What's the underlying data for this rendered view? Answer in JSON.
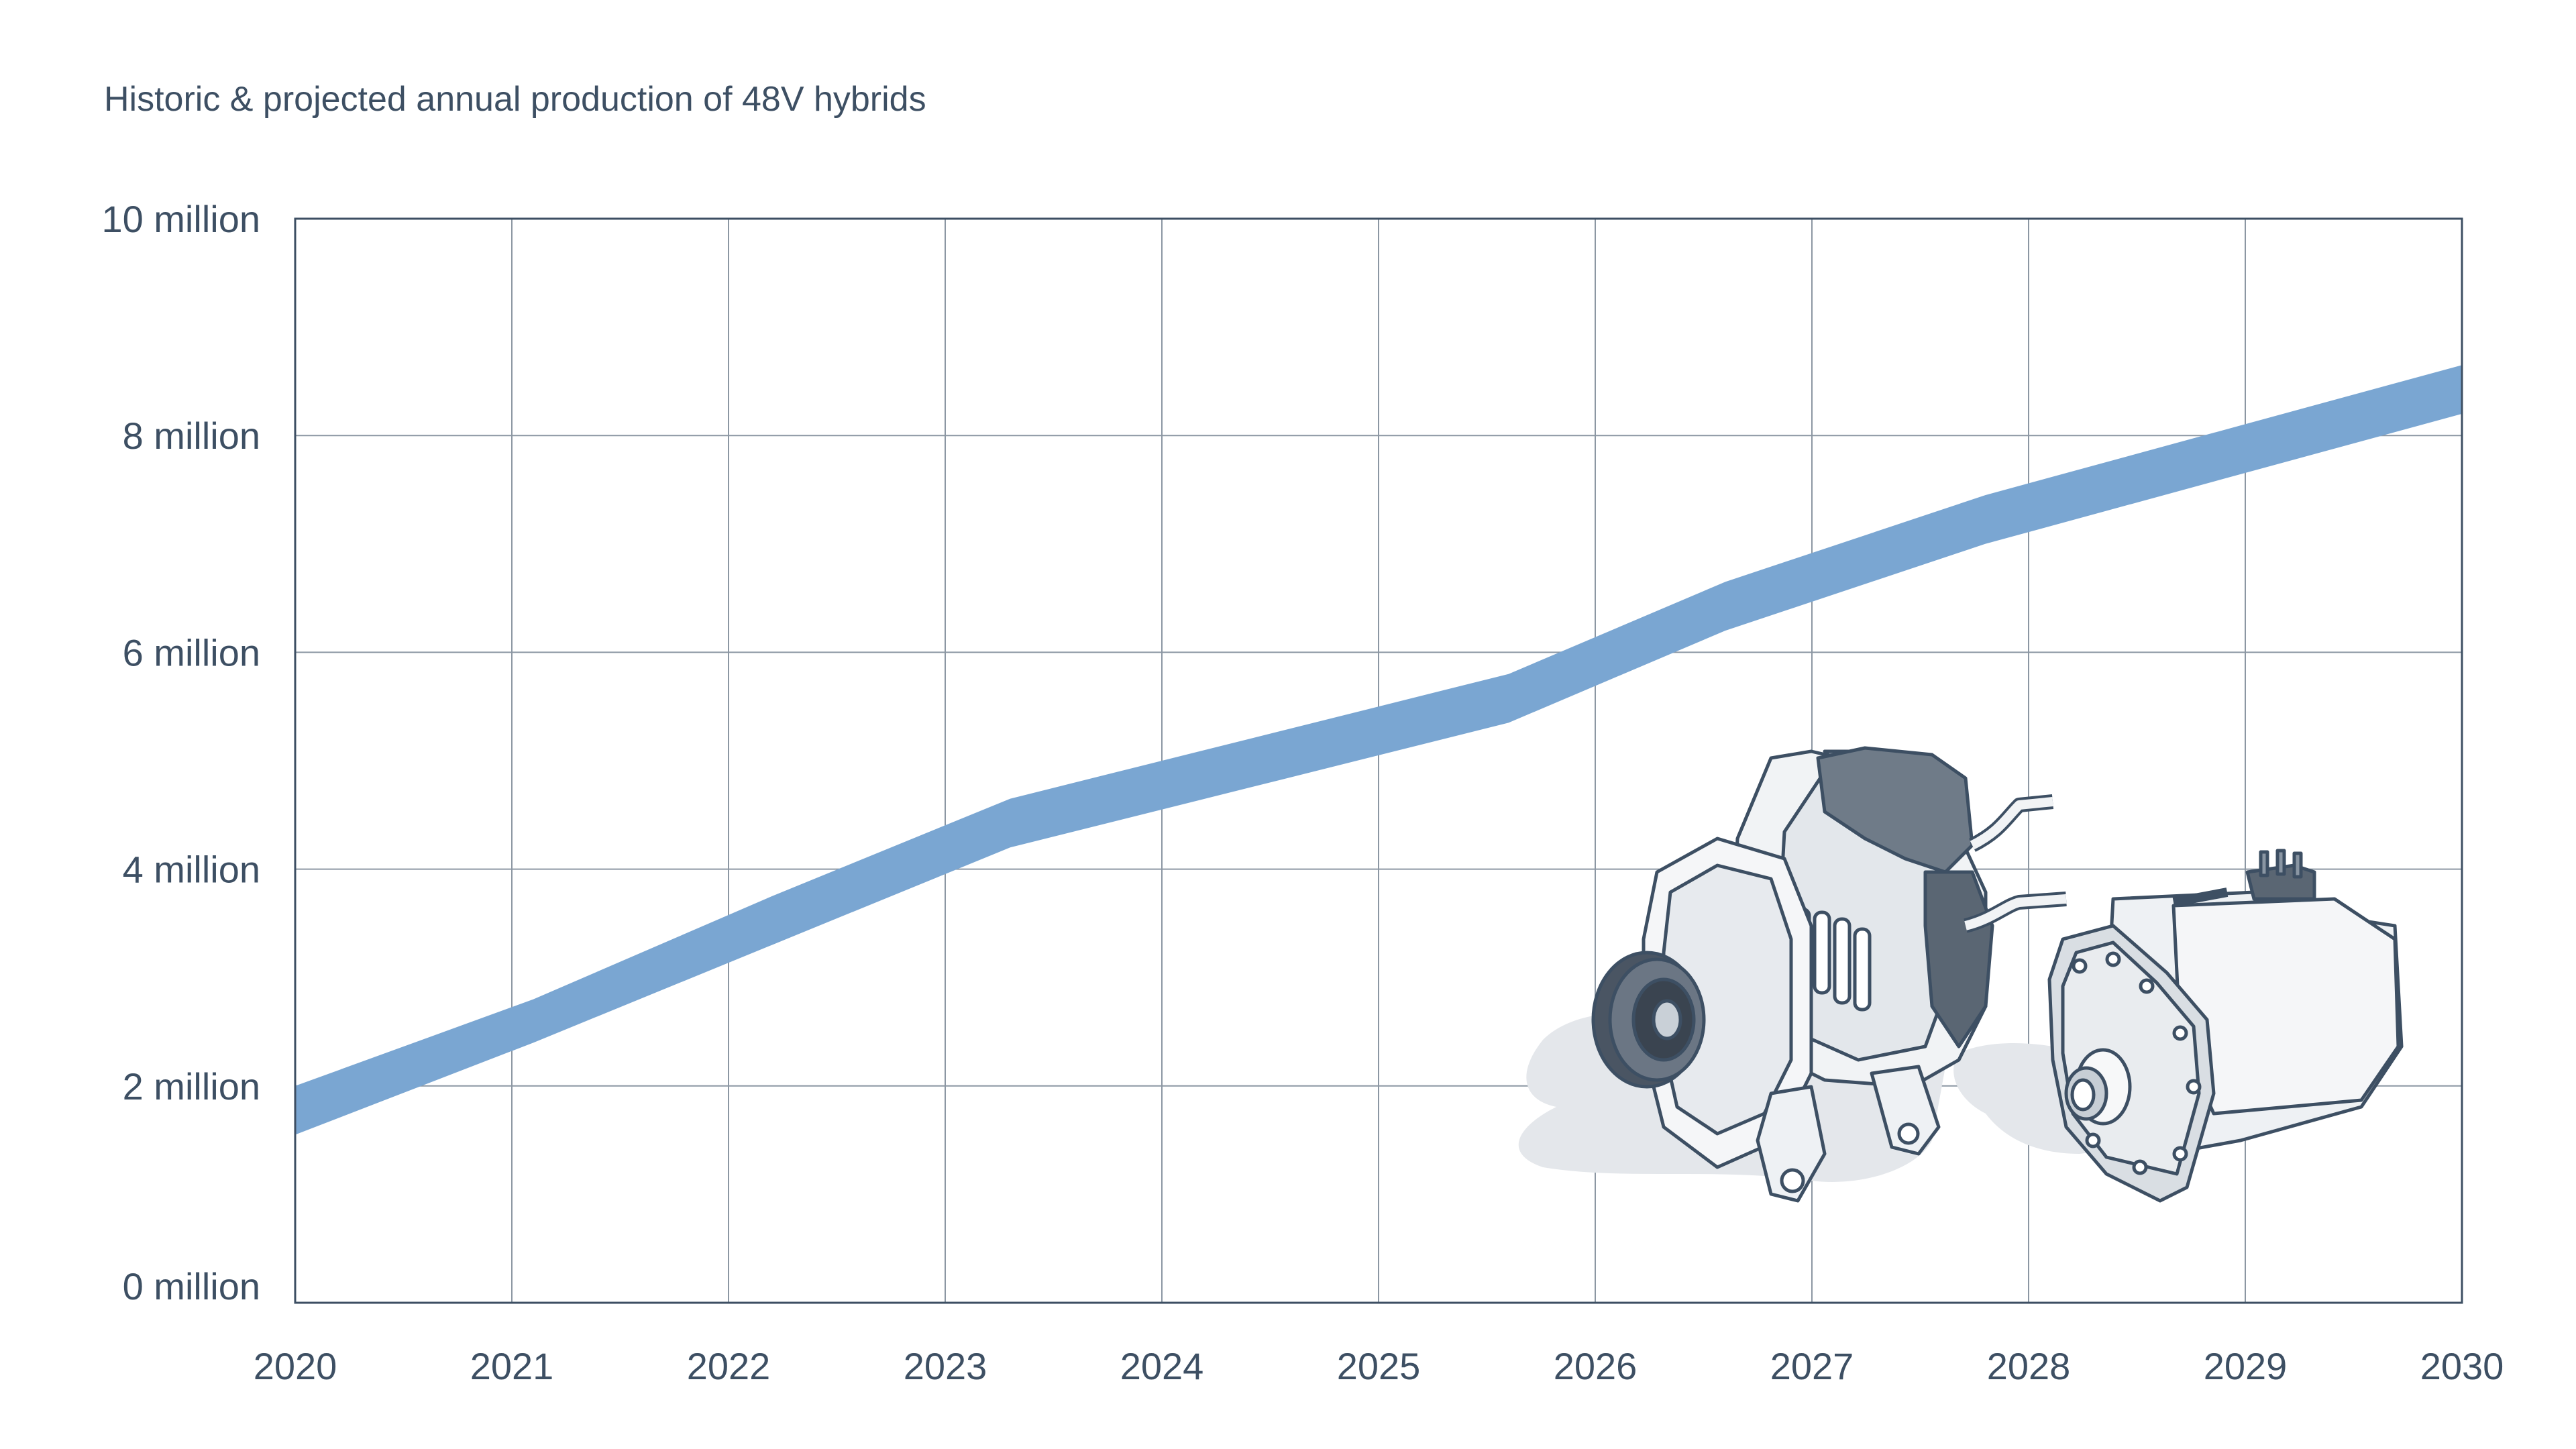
{
  "chart_data": {
    "type": "area",
    "title": "Historic & projected annual production of 48V hybrids",
    "xlabel": "",
    "ylabel": "",
    "x_ticks": [
      "2020",
      "2021",
      "2022",
      "2023",
      "2024",
      "2025",
      "2026",
      "2027",
      "2028",
      "2029",
      "2030"
    ],
    "y_ticks": [
      "0 million",
      "2 million",
      "4 million",
      "6 million",
      "8 million",
      "10 million"
    ],
    "y_tick_values": [
      0,
      2,
      4,
      6,
      8,
      10
    ],
    "xlim": [
      2020,
      2030
    ],
    "ylim": [
      0,
      10
    ],
    "grid": true,
    "band": {
      "x": [
        2020,
        2021.1,
        2022.2,
        2023.3,
        2024.4,
        2025.6,
        2026.6,
        2027.8,
        2028.9,
        2030
      ],
      "upper": [
        2.0,
        2.8,
        3.75,
        4.65,
        5.2,
        5.8,
        6.65,
        7.45,
        8.05,
        8.65
      ],
      "lower": [
        1.55,
        2.4,
        3.3,
        4.2,
        4.75,
        5.35,
        6.2,
        7.0,
        7.6,
        8.2
      ]
    },
    "band_color": "#7aa6d2",
    "grid_color": "#8c97a3",
    "axis_color": "#3d4f63"
  },
  "illustration": {
    "name": "48V motor-generator and e-motor illustration"
  }
}
